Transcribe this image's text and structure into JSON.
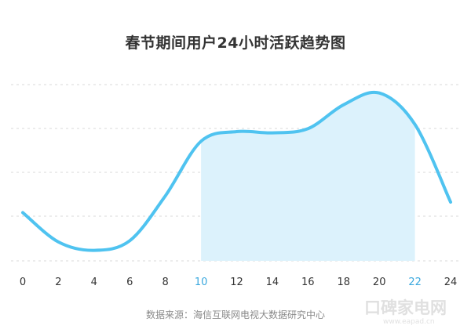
{
  "chart_data": {
    "type": "area",
    "title": "春节期间用户24小时活跃趋势图",
    "x": [
      0,
      2,
      4,
      6,
      8,
      10,
      12,
      14,
      16,
      18,
      20,
      22,
      24
    ],
    "tick_labels": [
      "0",
      "2",
      "4",
      "6",
      "8",
      "10",
      "12",
      "14",
      "16",
      "18",
      "20",
      "22",
      "24"
    ],
    "highlight_ticks": [
      "10",
      "22"
    ],
    "values": [
      1.15,
      0.45,
      0.25,
      0.48,
      1.55,
      2.85,
      3.08,
      3.05,
      3.15,
      3.72,
      4.0,
      3.25,
      1.4
    ],
    "ylim": [
      0,
      4.2
    ],
    "highlight_range": [
      10,
      22
    ],
    "grid": true,
    "yaxis_labels": false,
    "line_color": "#4fc3f0",
    "fill_color": "#dcf2fc",
    "grid_color": "#d9d9d9",
    "tick_color": "#333333",
    "highlight_tick_color": "#3aa8de"
  },
  "source": "数据来源：海信互联网电视大数据研究中心",
  "watermark": {
    "text": "口碑家电网",
    "url": "www.eapad.cn"
  }
}
